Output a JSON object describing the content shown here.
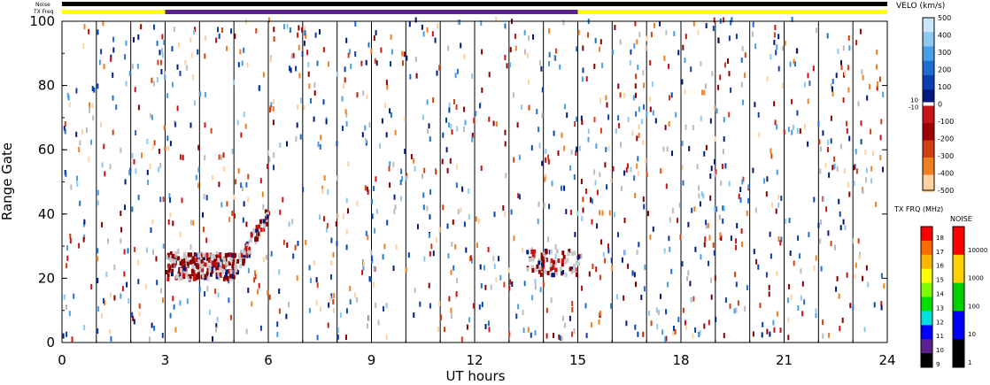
{
  "chart_data": {
    "type": "heatmap",
    "xlabel": "UT hours",
    "ylabel": "Range Gate",
    "xlim": [
      0,
      24
    ],
    "ylim": [
      0,
      100
    ],
    "x_ticks": [
      "0",
      "3",
      "6",
      "9",
      "12",
      "15",
      "18",
      "21",
      "24"
    ],
    "x_tick_values": [
      0,
      3,
      6,
      9,
      12,
      15,
      18,
      21,
      24
    ],
    "y_ticks": [
      "0",
      "20",
      "40",
      "60",
      "80",
      "100"
    ],
    "y_tick_values": [
      0,
      20,
      40,
      60,
      80,
      100
    ],
    "scan_boundaries_ut": [
      1,
      2,
      3,
      4,
      5,
      6,
      7,
      8,
      9,
      10,
      11,
      12,
      13,
      14,
      15,
      16,
      17,
      18,
      19,
      20,
      21,
      22,
      23
    ],
    "top_bars": {
      "noise_label": "Noise",
      "txfreq_label": "TX Freq",
      "noise_color": "#000000",
      "txfreq_segments": [
        {
          "start": 0,
          "end": 3,
          "color": "#ffff00"
        },
        {
          "start": 3,
          "end": 15,
          "color": "#5b1f8f"
        },
        {
          "start": 15,
          "end": 24,
          "color": "#ffff00"
        }
      ]
    },
    "velocity_colorbar": {
      "title": "VELO (km/s)",
      "ticks": [
        "500",
        "400",
        "300",
        "200",
        "100",
        "0",
        "-100",
        "-200",
        "-300",
        "-400",
        "-500"
      ],
      "tick_values": [
        500,
        400,
        300,
        200,
        100,
        0,
        -100,
        -200,
        -300,
        -400,
        -500
      ],
      "extra_labels": [
        "10",
        "-10"
      ],
      "colors": [
        "#c8e6ff",
        "#8cc8f0",
        "#4aa0e8",
        "#1e6fd0",
        "#0a3fb0",
        "#001a80",
        "#c81414",
        "#a00000",
        "#d04010",
        "#f08020",
        "#ffd0a0"
      ]
    },
    "freq_colorbar": {
      "title": "TX FRQ (MHz)",
      "ticks": [
        "18",
        "17",
        "16",
        "15",
        "14",
        "13",
        "12",
        "11",
        "10",
        "9"
      ],
      "colors": [
        "#ff0000",
        "#ff6a00",
        "#ffb400",
        "#ffff00",
        "#80ff00",
        "#00e000",
        "#00e0e0",
        "#0000ff",
        "#5b1f8f",
        "#000000"
      ]
    },
    "noise_colorbar": {
      "title": "NOISE",
      "ticks": [
        "10000",
        "1000",
        "100",
        "10",
        "1"
      ],
      "colors": [
        "#ff0000",
        "#ffd000",
        "#00d000",
        "#0000ff",
        "#000000"
      ]
    },
    "scatter_palette": [
      "#001a80",
      "#0a3fb0",
      "#1e6fd0",
      "#4aa0e8",
      "#8cc8f0",
      "#c81414",
      "#8b0000",
      "#d04010",
      "#f08020",
      "#ffd0a0",
      "#bbbbbb"
    ],
    "features": [
      {
        "name": "ground-scatter band",
        "ut": [
          3.0,
          5.0
        ],
        "gate": [
          19,
          27
        ]
      },
      {
        "name": "rising echo trace",
        "ut": [
          5.0,
          6.0
        ],
        "gate": [
          22,
          40
        ]
      },
      {
        "name": "mid-day scatter patch",
        "ut": [
          13.5,
          15.0
        ],
        "gate": [
          20,
          28
        ]
      }
    ]
  }
}
